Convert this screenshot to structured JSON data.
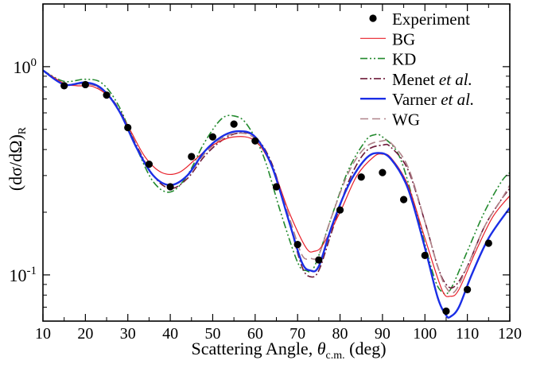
{
  "chart_data": {
    "type": "scatter",
    "xlabel": "Scattering Angle, θc.m. (deg)",
    "xlabel_parts": {
      "text": "Scattering Angle, ",
      "theta": "θ",
      "sub": "c.m.",
      "unit": " (deg)"
    },
    "ylabel": "(dσ/dΩ)R",
    "ylabel_parts": {
      "main": "(dσ/dΩ)",
      "sub": "R"
    },
    "xlim": [
      10,
      120
    ],
    "ylim": [
      0.06,
      2.0
    ],
    "yscale": "log",
    "x_ticks": [
      "10",
      "20",
      "30",
      "40",
      "50",
      "60",
      "70",
      "80",
      "90",
      "100",
      "110",
      "120"
    ],
    "y_ticks": [
      {
        "base": "10",
        "exp": "0",
        "value": 1
      },
      {
        "base": "10",
        "exp": "-1",
        "value": 0.1
      }
    ],
    "grid": false,
    "legend_position": "top-right",
    "series": [
      {
        "name": "Experiment",
        "style": "points",
        "color": "#000000",
        "x": [
          15,
          20,
          25,
          30,
          35,
          40,
          45,
          50,
          55,
          60,
          65,
          70,
          75,
          80,
          85,
          90,
          95,
          100,
          105,
          110,
          115
        ],
        "y": [
          0.81,
          0.82,
          0.73,
          0.51,
          0.34,
          0.265,
          0.37,
          0.46,
          0.53,
          0.44,
          0.265,
          0.14,
          0.118,
          0.205,
          0.295,
          0.31,
          0.23,
          0.124,
          0.067,
          0.085,
          0.142
        ]
      },
      {
        "name": "BG",
        "style": "solid-thin",
        "color": "#e8202a",
        "x": [
          10,
          15,
          18,
          22,
          26,
          30,
          34,
          38,
          42,
          46,
          50,
          55,
          60,
          64,
          68,
          72,
          74,
          76,
          80,
          84,
          88,
          90,
          92,
          96,
          100,
          104,
          106,
          108,
          112,
          116,
          120
        ],
        "y": [
          0.96,
          0.83,
          0.81,
          0.8,
          0.7,
          0.52,
          0.37,
          0.31,
          0.31,
          0.36,
          0.42,
          0.46,
          0.44,
          0.33,
          0.2,
          0.135,
          0.13,
          0.14,
          0.2,
          0.3,
          0.37,
          0.38,
          0.365,
          0.27,
          0.15,
          0.085,
          0.079,
          0.085,
          0.13,
          0.19,
          0.24
        ]
      },
      {
        "name": "KD",
        "style": "dash-dot-dot",
        "color": "#238a2e",
        "x": [
          10,
          15,
          20,
          24,
          28,
          32,
          36,
          40,
          44,
          48,
          52,
          55,
          58,
          62,
          66,
          70,
          72,
          74,
          78,
          82,
          86,
          88,
          90,
          94,
          98,
          102,
          104,
          106,
          110,
          114,
          118,
          120
        ],
        "y": [
          0.96,
          0.85,
          0.87,
          0.83,
          0.64,
          0.41,
          0.28,
          0.25,
          0.3,
          0.43,
          0.56,
          0.58,
          0.53,
          0.37,
          0.2,
          0.115,
          0.105,
          0.11,
          0.19,
          0.32,
          0.44,
          0.47,
          0.46,
          0.37,
          0.2,
          0.1,
          0.083,
          0.085,
          0.13,
          0.2,
          0.28,
          0.31
        ]
      },
      {
        "name": "Menet et al.",
        "style": "dash-dot",
        "color": "#6e1b3a",
        "x": [
          10,
          15,
          20,
          24,
          28,
          32,
          36,
          40,
          44,
          48,
          52,
          56,
          60,
          64,
          68,
          71,
          73,
          75,
          78,
          82,
          86,
          90,
          92,
          96,
          100,
          103,
          105,
          107,
          110,
          114,
          118,
          120
        ],
        "y": [
          0.96,
          0.82,
          0.83,
          0.78,
          0.62,
          0.42,
          0.3,
          0.26,
          0.29,
          0.37,
          0.44,
          0.48,
          0.46,
          0.34,
          0.18,
          0.11,
          0.098,
          0.105,
          0.16,
          0.28,
          0.39,
          0.42,
          0.41,
          0.32,
          0.18,
          0.11,
          0.09,
          0.088,
          0.11,
          0.17,
          0.23,
          0.26
        ]
      },
      {
        "name": "Varner et al.",
        "style": "solid-thick",
        "color": "#1a2ee6",
        "x": [
          10,
          15,
          20,
          24,
          28,
          32,
          36,
          40,
          44,
          48,
          52,
          56,
          60,
          64,
          68,
          71,
          73,
          75,
          78,
          82,
          86,
          89,
          92,
          96,
          100,
          103,
          105,
          106,
          108,
          111,
          115,
          120
        ],
        "y": [
          0.96,
          0.82,
          0.84,
          0.78,
          0.61,
          0.41,
          0.3,
          0.27,
          0.3,
          0.39,
          0.46,
          0.49,
          0.46,
          0.33,
          0.18,
          0.115,
          0.105,
          0.11,
          0.17,
          0.27,
          0.36,
          0.385,
          0.36,
          0.26,
          0.135,
          0.078,
          0.064,
          0.063,
          0.07,
          0.1,
          0.15,
          0.21
        ]
      },
      {
        "name": "WG",
        "style": "dashed",
        "color": "#b0848a",
        "x": [
          10,
          15,
          20,
          24,
          28,
          32,
          36,
          40,
          44,
          48,
          52,
          56,
          60,
          64,
          68,
          71,
          73,
          75,
          78,
          82,
          86,
          90,
          92,
          96,
          100,
          103,
          105,
          107,
          110,
          114,
          118,
          120
        ],
        "y": [
          0.96,
          0.82,
          0.83,
          0.77,
          0.61,
          0.41,
          0.3,
          0.27,
          0.3,
          0.38,
          0.45,
          0.48,
          0.45,
          0.33,
          0.19,
          0.125,
          0.12,
          0.125,
          0.19,
          0.31,
          0.41,
          0.44,
          0.43,
          0.33,
          0.18,
          0.11,
          0.087,
          0.083,
          0.11,
          0.17,
          0.23,
          0.27
        ]
      }
    ]
  }
}
